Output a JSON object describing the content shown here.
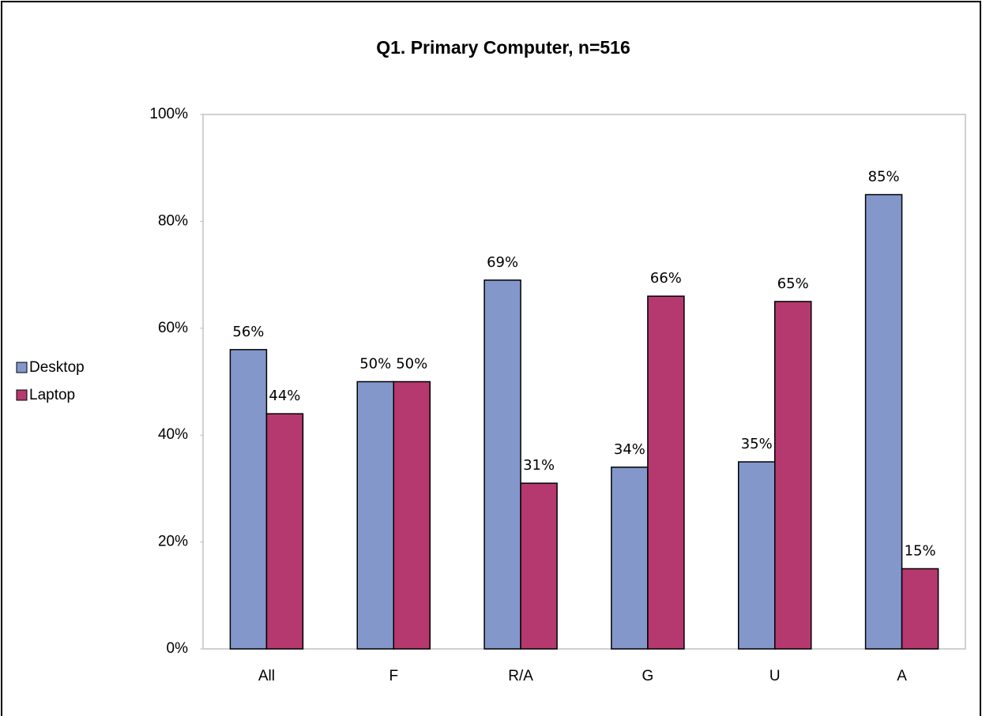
{
  "chart_data": {
    "type": "bar",
    "title": "Q1. Primary Computer, n=516",
    "categories": [
      "All",
      "F",
      "R/A",
      "G",
      "U",
      "A"
    ],
    "series": [
      {
        "name": "Desktop",
        "color": "#8497cb",
        "values": [
          56,
          50,
          69,
          34,
          35,
          85
        ],
        "value_labels": [
          "56%",
          "50%",
          "69%",
          "34%",
          "35%",
          "85%"
        ]
      },
      {
        "name": "Laptop",
        "color": "#b5396e",
        "values": [
          44,
          50,
          31,
          66,
          65,
          15
        ],
        "value_labels": [
          "44%",
          "50%",
          "31%",
          "66%",
          "65%",
          "15%"
        ]
      }
    ],
    "ylim": [
      0,
      100
    ],
    "yticks": [
      {
        "value": 0,
        "label": "0%"
      },
      {
        "value": 20,
        "label": "20%"
      },
      {
        "value": 40,
        "label": "40%"
      },
      {
        "value": 60,
        "label": "60%"
      },
      {
        "value": 80,
        "label": "80%"
      },
      {
        "value": 100,
        "label": "100%"
      }
    ],
    "grid": false,
    "legend": "left"
  }
}
